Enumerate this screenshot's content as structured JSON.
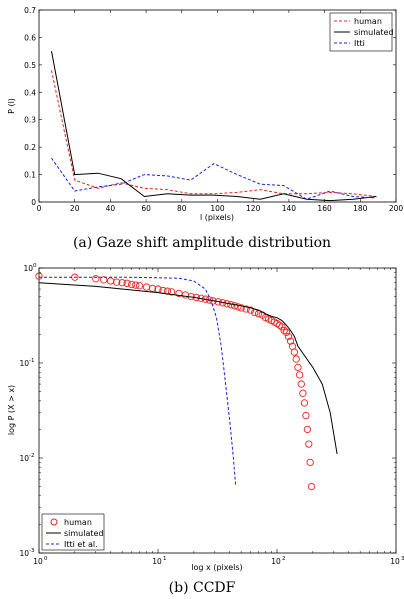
{
  "chart_data": [
    {
      "type": "line",
      "xlabel": "l (pixels)",
      "ylabel": "P (l)",
      "xlim": [
        0,
        200
      ],
      "ylim": [
        0,
        0.7
      ],
      "xticks": [
        "0",
        "20",
        "40",
        "60",
        "80",
        "100",
        "120",
        "140",
        "160",
        "180",
        "200"
      ],
      "yticks": [
        "0",
        "0.1",
        "0.2",
        "0.3",
        "0.4",
        "0.5",
        "0.6",
        "0.7"
      ],
      "legend_position": "top-right",
      "series": [
        {
          "name": "human",
          "color": "#e8231e",
          "style": "dashed",
          "x": [
            7,
            20,
            33,
            46,
            59,
            72,
            85,
            98,
            111,
            124,
            137,
            150,
            163,
            176,
            189
          ],
          "y": [
            0.48,
            0.08,
            0.05,
            0.07,
            0.05,
            0.045,
            0.03,
            0.03,
            0.035,
            0.045,
            0.03,
            0.03,
            0.035,
            0.03,
            0.02
          ]
        },
        {
          "name": "simulated",
          "color": "#000000",
          "style": "solid",
          "x": [
            7,
            20,
            33,
            46,
            59,
            72,
            85,
            98,
            111,
            124,
            137,
            150,
            163,
            176,
            189
          ],
          "y": [
            0.55,
            0.1,
            0.105,
            0.085,
            0.02,
            0.03,
            0.025,
            0.025,
            0.02,
            0.01,
            0.03,
            0.01,
            0.005,
            0.01,
            0.02
          ]
        },
        {
          "name": "Itti",
          "color": "#1f1fd8",
          "style": "dashed",
          "x": [
            7,
            20,
            33,
            46,
            59,
            72,
            85,
            98,
            111,
            124,
            137,
            150,
            163,
            176,
            189
          ],
          "y": [
            0.16,
            0.04,
            0.055,
            0.065,
            0.1,
            0.095,
            0.08,
            0.14,
            0.1,
            0.065,
            0.06,
            0.01,
            0.04,
            0.02,
            0.015
          ]
        }
      ]
    },
    {
      "type": "line",
      "xlabel": "log x (pixels)",
      "ylabel": "log P (X > x)",
      "xscale": "log",
      "yscale": "log",
      "xlim": [
        1,
        1000
      ],
      "ylim": [
        0.001,
        1
      ],
      "xticks": [
        {
          "base": "10",
          "exp": "0"
        },
        {
          "base": "10",
          "exp": "1"
        },
        {
          "base": "10",
          "exp": "2"
        },
        {
          "base": "10",
          "exp": "3"
        }
      ],
      "yticks": [
        {
          "base": "10",
          "exp": "-3"
        },
        {
          "base": "10",
          "exp": "-2"
        },
        {
          "base": "10",
          "exp": "-1"
        },
        {
          "base": "10",
          "exp": "0"
        }
      ],
      "legend_position": "bottom-left",
      "series": [
        {
          "name": "human",
          "color": "#e8231e",
          "style": "markers",
          "x": [
            1,
            2,
            3,
            3.5,
            4,
            4.5,
            5,
            5.5,
            6,
            6.5,
            7,
            8,
            9,
            10,
            11,
            12,
            13,
            15,
            17,
            19,
            21,
            23,
            25,
            27,
            29,
            32,
            35,
            38,
            41,
            44,
            47,
            50,
            55,
            60,
            65,
            70,
            75,
            80,
            85,
            90,
            95,
            100,
            105,
            110,
            115,
            120,
            125,
            130,
            135,
            140,
            145,
            150,
            155,
            160,
            165,
            170,
            175,
            180,
            185,
            190,
            195
          ],
          "y": [
            0.82,
            0.8,
            0.77,
            0.75,
            0.73,
            0.71,
            0.7,
            0.69,
            0.67,
            0.66,
            0.65,
            0.63,
            0.61,
            0.6,
            0.58,
            0.57,
            0.56,
            0.54,
            0.52,
            0.5,
            0.49,
            0.48,
            0.47,
            0.46,
            0.45,
            0.44,
            0.43,
            0.42,
            0.41,
            0.4,
            0.39,
            0.38,
            0.37,
            0.36,
            0.34,
            0.33,
            0.32,
            0.3,
            0.29,
            0.28,
            0.27,
            0.26,
            0.25,
            0.24,
            0.22,
            0.21,
            0.19,
            0.17,
            0.15,
            0.13,
            0.11,
            0.09,
            0.075,
            0.06,
            0.048,
            0.038,
            0.028,
            0.02,
            0.014,
            0.009,
            0.005
          ]
        },
        {
          "name": "simulated",
          "color": "#000000",
          "style": "solid",
          "x": [
            1,
            3,
            10,
            20,
            30,
            40,
            50,
            60,
            70,
            80,
            90,
            100,
            110,
            120,
            130,
            140,
            150,
            170,
            200,
            240,
            280,
            320
          ],
          "y": [
            0.7,
            0.64,
            0.55,
            0.49,
            0.45,
            0.42,
            0.4,
            0.38,
            0.36,
            0.33,
            0.31,
            0.3,
            0.28,
            0.25,
            0.22,
            0.19,
            0.15,
            0.12,
            0.09,
            0.06,
            0.03,
            0.011
          ]
        },
        {
          "name": "Itti et al.",
          "color": "#1f1fd8",
          "style": "dashed",
          "x": [
            1,
            5,
            10,
            15,
            20,
            25,
            28,
            31,
            34,
            37,
            40,
            43,
            45
          ],
          "y": [
            0.8,
            0.8,
            0.79,
            0.78,
            0.73,
            0.6,
            0.45,
            0.3,
            0.15,
            0.06,
            0.025,
            0.01,
            0.005
          ]
        }
      ]
    }
  ],
  "captions": {
    "a": "(a)  Gaze shift amplitude distribution",
    "b": "(b)  CCDF"
  }
}
